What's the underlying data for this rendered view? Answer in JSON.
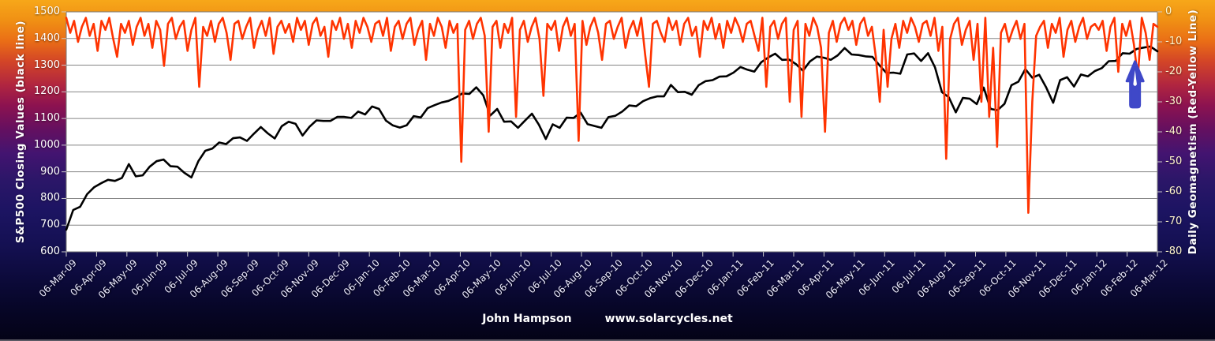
{
  "chart": {
    "footer": {
      "author": "John Hampson",
      "site": "www.solarcycles.net"
    },
    "colors": {
      "plot_background": "#FFFFFF",
      "gridline": "#858585",
      "axis_border": "#7A7A7A",
      "tick": "#C9C9C9",
      "sp500_line": "#000000",
      "geomagnetism_line": "#FF3300",
      "arrow": "#3F48C8",
      "left_tick_text": "#FFFFFF",
      "right_tick_text": "#FFF6CC",
      "background_top": "#F7A719",
      "background_bottom": "#040316"
    }
  },
  "chart_data": {
    "type": "line",
    "title": "",
    "legend": "none",
    "grid": "horizontal",
    "x_axis": {
      "start": "06-Mar-09",
      "end": "06-Mar-12",
      "tick_interval": "monthly",
      "labels": [
        "06-Mar-09",
        "06-Apr-09",
        "06-May-09",
        "06-Jun-09",
        "06-Jul-09",
        "06-Aug-09",
        "06-Sep-09",
        "06-Oct-09",
        "06-Nov-09",
        "06-Dec-09",
        "06-Jan-10",
        "06-Feb-10",
        "06-Mar-10",
        "06-Apr-10",
        "06-May-10",
        "06-Jun-10",
        "06-Jul-10",
        "06-Aug-10",
        "06-Sep-10",
        "06-Oct-10",
        "06-Nov-10",
        "06-Dec-10",
        "06-Jan-11",
        "06-Feb-11",
        "06-Mar-11",
        "06-Apr-11",
        "06-May-11",
        "06-Jun-11",
        "06-Jul-11",
        "06-Aug-11",
        "06-Sep-11",
        "06-Oct-11",
        "06-Nov-11",
        "06-Dec-11",
        "06-Jan-12",
        "06-Feb-12",
        "06-Mar-12"
      ]
    },
    "y_left": {
      "label": "S&P500 Closing Values (black line)",
      "min": 600,
      "max": 1500,
      "tick_step": 100,
      "tick_labels": [
        "1500",
        "1400",
        "1300",
        "1200",
        "1100",
        "1000",
        "900",
        "800",
        "700",
        "600"
      ]
    },
    "y_right": {
      "label": "Daily Geomagnetism (Red-Yellow  Line)",
      "min": -80,
      "max": 0,
      "tick_step": 10,
      "tick_labels": [
        "0",
        "-10",
        "-20",
        "-30",
        "-40",
        "-50",
        "-60",
        "-70",
        "-80"
      ]
    },
    "series": [
      {
        "name": "S&P500 Closing Values",
        "axis": "left",
        "color": "#000000",
        "sampling": "weekly closes, 06-Mar-09 to 06-Mar-12",
        "values": [
          683,
          757,
          769,
          816,
          842,
          857,
          870,
          866,
          877,
          929,
          883,
          887,
          919,
          940,
          946,
          921,
          919,
          896,
          879,
          940,
          979,
          987,
          1010,
          1004,
          1026,
          1029,
          1016,
          1043,
          1068,
          1044,
          1025,
          1071,
          1088,
          1080,
          1036,
          1069,
          1093,
          1091,
          1091,
          1106,
          1106,
          1102,
          1126,
          1115,
          1145,
          1136,
          1092,
          1074,
          1066,
          1075,
          1109,
          1104,
          1139,
          1150,
          1160,
          1166,
          1178,
          1194,
          1192,
          1217,
          1187,
          1111,
          1136,
          1088,
          1089,
          1065,
          1092,
          1118,
          1077,
          1023,
          1078,
          1065,
          1103,
          1102,
          1122,
          1079,
          1072,
          1065,
          1105,
          1110,
          1126,
          1149,
          1146,
          1165,
          1176,
          1183,
          1183,
          1226,
          1199,
          1200,
          1189,
          1225,
          1240,
          1244,
          1257,
          1258,
          1272,
          1293,
          1283,
          1276,
          1311,
          1329,
          1343,
          1320,
          1321,
          1304,
          1279,
          1314,
          1332,
          1328,
          1320,
          1337,
          1364,
          1340,
          1338,
          1333,
          1331,
          1300,
          1271,
          1272,
          1268,
          1340,
          1344,
          1316,
          1345,
          1292,
          1199,
          1179,
          1123,
          1177,
          1174,
          1154,
          1216,
          1136,
          1131,
          1155,
          1225,
          1238,
          1285,
          1253,
          1264,
          1216,
          1159,
          1244,
          1255,
          1220,
          1265,
          1258,
          1278,
          1289,
          1315,
          1316,
          1345,
          1343,
          1361,
          1366,
          1370,
          1352
        ]
      },
      {
        "name": "Daily Geomagnetism",
        "axis": "right",
        "color": "#FF3300",
        "sampling": "approx every 4 days, 06-Mar-09 to 06-Mar-12",
        "values": [
          -2,
          -7,
          -3,
          -10,
          -5,
          -2,
          -8,
          -4,
          -13,
          -3,
          -6,
          -2,
          -9,
          -15,
          -4,
          -7,
          -3,
          -11,
          -5,
          -2,
          -8,
          -4,
          -12,
          -3,
          -6,
          -18,
          -4,
          -2,
          -9,
          -5,
          -3,
          -13,
          -6,
          -2,
          -25,
          -5,
          -8,
          -3,
          -10,
          -4,
          -2,
          -7,
          -16,
          -4,
          -3,
          -9,
          -5,
          -2,
          -12,
          -6,
          -3,
          -8,
          -2,
          -14,
          -5,
          -3,
          -7,
          -4,
          -10,
          -2,
          -6,
          -3,
          -11,
          -4,
          -2,
          -8,
          -5,
          -15,
          -3,
          -6,
          -2,
          -9,
          -4,
          -12,
          -3,
          -7,
          -2,
          -5,
          -10,
          -4,
          -3,
          -8,
          -2,
          -13,
          -5,
          -3,
          -9,
          -4,
          -2,
          -11,
          -6,
          -3,
          -16,
          -4,
          -8,
          -2,
          -5,
          -12,
          -3,
          -7,
          -4,
          -50,
          -6,
          -3,
          -9,
          -4,
          -2,
          -8,
          -40,
          -5,
          -3,
          -12,
          -4,
          -7,
          -2,
          -35,
          -6,
          -3,
          -10,
          -5,
          -2,
          -9,
          -28,
          -4,
          -6,
          -3,
          -13,
          -5,
          -2,
          -8,
          -4,
          -43,
          -3,
          -11,
          -5,
          -2,
          -7,
          -16,
          -4,
          -3,
          -9,
          -5,
          -2,
          -12,
          -6,
          -3,
          -8,
          -2,
          -14,
          -25,
          -4,
          -3,
          -7,
          -10,
          -2,
          -6,
          -3,
          -11,
          -4,
          -2,
          -8,
          -5,
          -15,
          -3,
          -6,
          -2,
          -9,
          -4,
          -12,
          -3,
          -7,
          -2,
          -5,
          -10,
          -4,
          -3,
          -8,
          -13,
          -2,
          -25,
          -5,
          -3,
          -9,
          -4,
          -2,
          -30,
          -6,
          -3,
          -35,
          -4,
          -8,
          -2,
          -5,
          -12,
          -40,
          -7,
          -3,
          -10,
          -4,
          -2,
          -6,
          -3,
          -11,
          -4,
          -2,
          -8,
          -5,
          -15,
          -30,
          -6,
          -25,
          -9,
          -4,
          -12,
          -3,
          -7,
          -2,
          -5,
          -10,
          -4,
          -3,
          -8,
          -2,
          -13,
          -5,
          -49,
          -9,
          -4,
          -2,
          -11,
          -6,
          -3,
          -16,
          -4,
          -30,
          -2,
          -35,
          -12,
          -45,
          -7,
          -4,
          -10,
          -6,
          -3,
          -9,
          -4,
          -67,
          -30,
          -8,
          -5,
          -3,
          -12,
          -4,
          -7,
          -2,
          -15,
          -6,
          -3,
          -10,
          -5,
          -2,
          -9,
          -5,
          -4,
          -6,
          -3,
          -13,
          -5,
          -2,
          -20,
          -4,
          -8,
          -3,
          -11,
          -22,
          -2,
          -7,
          -16,
          -4,
          -5
        ]
      }
    ],
    "annotations": [
      {
        "type": "block-arrow-up",
        "color": "#3F48C8",
        "x_label": "mid-Feb-12",
        "x_frac": 0.9795,
        "y_top_value": 1314,
        "y_bottom_value": 1142
      }
    ]
  }
}
